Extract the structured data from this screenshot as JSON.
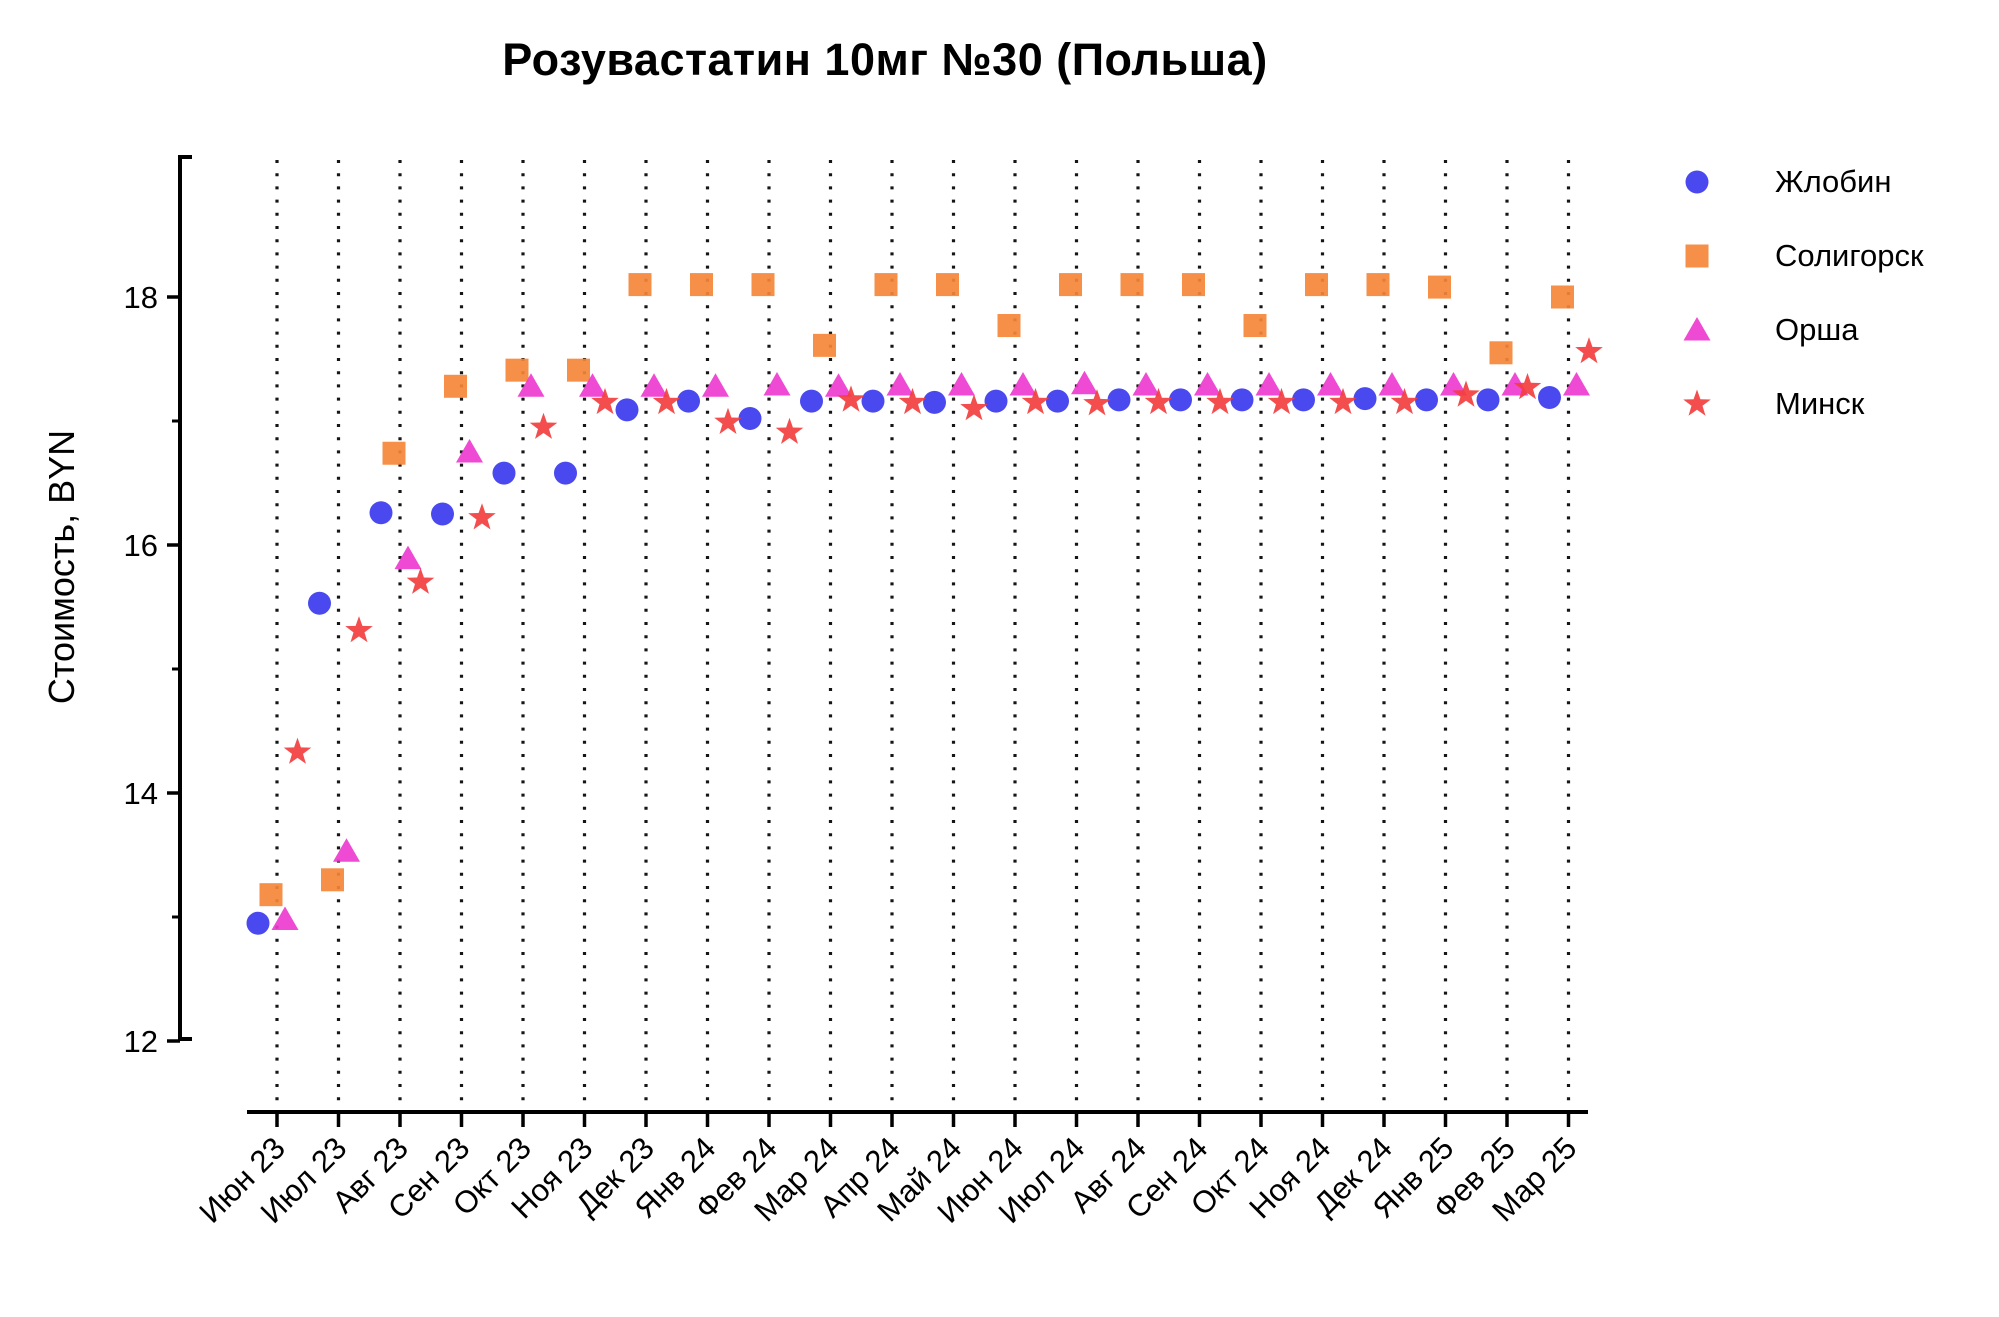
{
  "chart_data": {
    "type": "scatter",
    "title": "Розувастатин 10мг №30 (Польша)",
    "xlabel": "",
    "ylabel": "Стоимость, BYN",
    "categories": [
      "Июн 23",
      "Июл 23",
      "Авг 23",
      "Сен 23",
      "Окт 23",
      "Ноя 23",
      "Дек 23",
      "Янв 24",
      "Фев 24",
      "Мар 24",
      "Апр 24",
      "Май 24",
      "Июн 24",
      "Июл 24",
      "Авг 24",
      "Сен 24",
      "Окт 24",
      "Ноя 24",
      "Дек 24",
      "Янв 25",
      "Фев 25",
      "Мар 25"
    ],
    "series": [
      {
        "name": "Жлобин",
        "marker": "circle",
        "color": "#3a3aee",
        "values": [
          12.95,
          15.53,
          16.26,
          16.25,
          16.58,
          16.58,
          17.09,
          17.16,
          17.02,
          17.16,
          17.16,
          17.15,
          17.16,
          17.16,
          17.17,
          17.17,
          17.17,
          17.17,
          17.18,
          17.17,
          17.17,
          17.19
        ]
      },
      {
        "name": "Солигорск",
        "marker": "square",
        "color": "#f58538",
        "values": [
          13.18,
          13.3,
          16.74,
          17.28,
          17.41,
          17.41,
          18.1,
          18.1,
          18.1,
          17.61,
          18.1,
          18.1,
          17.77,
          18.1,
          18.1,
          18.1,
          17.77,
          18.1,
          18.1,
          18.08,
          17.55,
          18.0
        ]
      },
      {
        "name": "Орша",
        "marker": "triangle",
        "color": "#ee3bcf",
        "values": [
          12.98,
          13.53,
          15.89,
          16.75,
          17.28,
          17.28,
          17.28,
          17.28,
          17.29,
          17.28,
          17.29,
          17.29,
          17.29,
          17.3,
          17.29,
          17.29,
          17.29,
          17.29,
          17.29,
          17.29,
          17.29,
          17.29
        ]
      },
      {
        "name": "Минск",
        "marker": "star",
        "color": "#f23e3e",
        "values": [
          14.33,
          15.31,
          15.7,
          16.22,
          16.95,
          17.15,
          17.15,
          16.99,
          16.91,
          17.17,
          17.15,
          17.1,
          17.15,
          17.14,
          17.15,
          17.15,
          17.15,
          17.15,
          17.15,
          17.21,
          17.27,
          17.56
        ]
      }
    ],
    "yticks": [
      12,
      14,
      16,
      18
    ],
    "yticks_minor": [
      13,
      15,
      17
    ],
    "ylim": [
      11.4,
      19.15
    ],
    "grid": "vertical-dotted",
    "legend_position": "right"
  }
}
